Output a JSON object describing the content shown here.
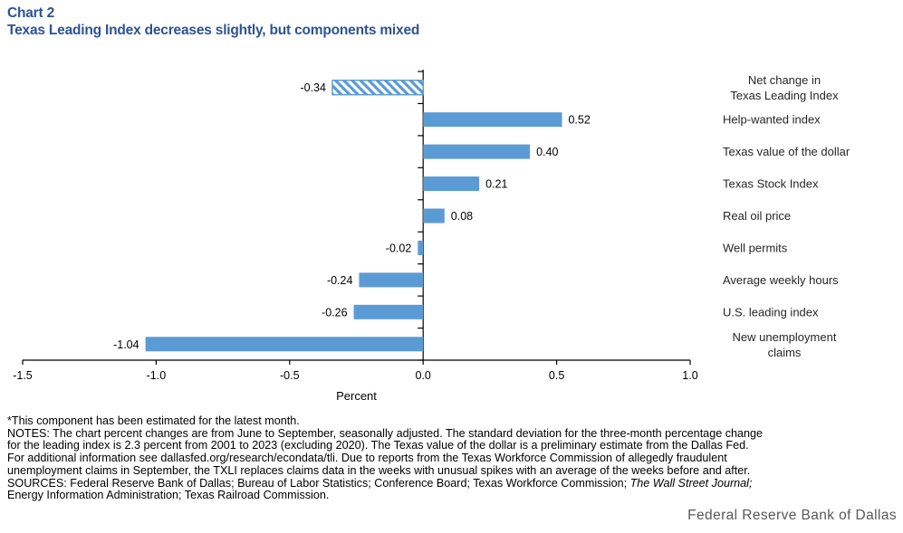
{
  "header": {
    "chart_number": "Chart 2",
    "title": "Texas Leading Index decreases slightly, but components mixed"
  },
  "chart_data": {
    "type": "bar",
    "orientation": "horizontal",
    "title": "Texas Leading Index decreases slightly, but components mixed",
    "xlabel": "Percent",
    "xlim": [
      -1.5,
      1.0
    ],
    "xticks": [
      -1.5,
      -1.0,
      -0.5,
      0.0,
      0.5,
      1.0
    ],
    "xtick_labels": [
      "-1.5",
      "-1.0",
      "-0.5",
      "0.0",
      "0.5",
      "1.0"
    ],
    "categories": [
      "Net change in Texas Leading Index",
      "Help-wanted index",
      "Texas value of the dollar",
      "Texas Stock Index",
      "Real oil price",
      "Well permits",
      "Average weekly hours",
      "U.S. leading index",
      "New unemployment claims"
    ],
    "category_label_lines": [
      [
        "Net change in",
        "Texas Leading Index"
      ],
      [
        "Help-wanted index"
      ],
      [
        "Texas value of the dollar"
      ],
      [
        "Texas Stock Index"
      ],
      [
        "Real oil price"
      ],
      [
        "Well permits"
      ],
      [
        "Average weekly hours"
      ],
      [
        "U.S. leading index"
      ],
      [
        "New unemployment",
        "claims"
      ]
    ],
    "values": [
      -0.34,
      0.52,
      0.4,
      0.21,
      0.08,
      -0.02,
      -0.24,
      -0.26,
      -1.04
    ],
    "value_labels": [
      "-0.34",
      "0.52",
      "0.40",
      "0.21",
      "0.08",
      "-0.02",
      "-0.24",
      "-0.26",
      "-1.04"
    ],
    "hatched": [
      true,
      false,
      false,
      false,
      false,
      false,
      false,
      false,
      false
    ],
    "bar_color": "#5b9bd5",
    "grid": false,
    "legend": "none"
  },
  "notes": {
    "footnote": "*This component has been estimated for the latest month.",
    "body_lines": [
      "NOTES: The chart percent changes are from June to September, seasonally adjusted. The standard deviation for the three-month percentage change",
      "for the leading index is 2.3 percent from 2001 to 2023 (excluding 2020). The Texas value of the dollar is a preliminary estimate from the Dallas Fed.",
      "For additional information see dallasfed.org/research/econdata/tli. Due to reports from the Texas Workforce Commission of allegedly fraudulent",
      "unemployment claims in September, the TXLI replaces claims data in the weeks with unusual spikes with an average of the weeks before and after."
    ],
    "sources_prefix": "SOURCES: Federal Reserve Bank of Dallas; Bureau of Labor Statistics; Conference Board; Texas Workforce Commission; ",
    "sources_italic": "The Wall Street Journal;",
    "sources_line2": "Energy Information Administration; Texas Railroad Commission."
  },
  "footer": {
    "brand": "Federal Reserve Bank of Dallas"
  },
  "colors": {
    "title_blue": "#2d5296",
    "bar_blue": "#5b9bd5",
    "axis_black": "#000000",
    "label_text": "#262626",
    "footer_gray": "#58585a"
  }
}
